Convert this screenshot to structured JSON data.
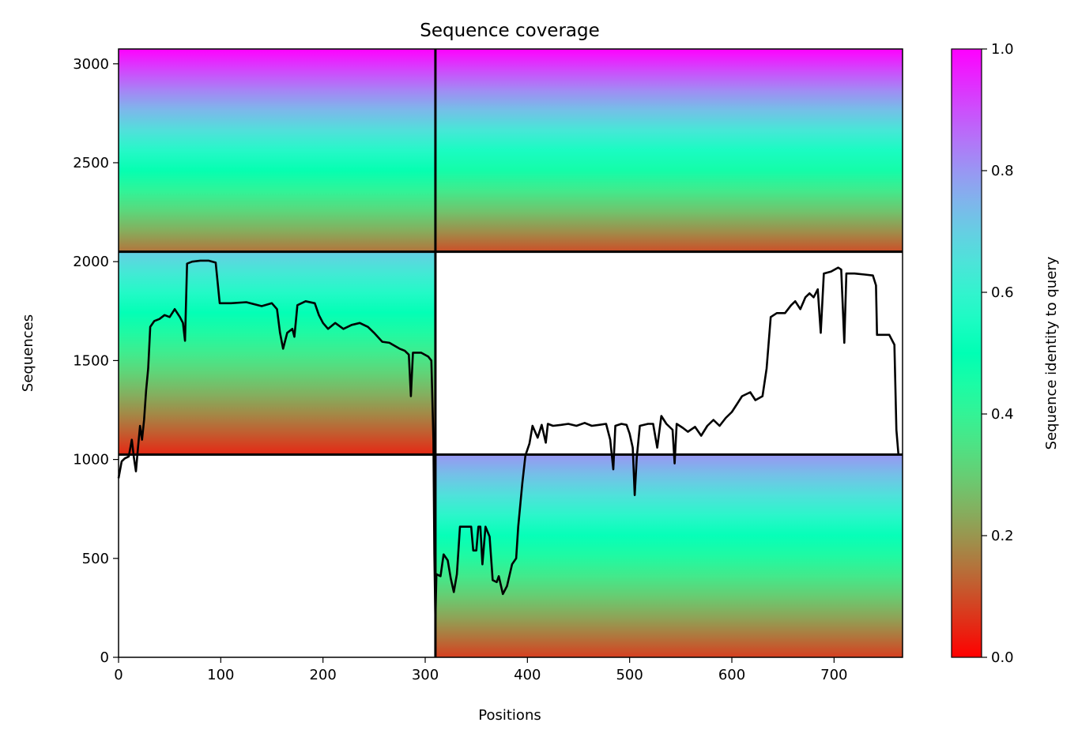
{
  "chart_data": {
    "type": "heatmap",
    "title": "Sequence coverage",
    "xlabel": "Positions",
    "ylabel": "Sequences",
    "xlim": [
      0,
      767
    ],
    "ylim": [
      0,
      3075
    ],
    "xticks": [
      0,
      100,
      200,
      300,
      400,
      500,
      600,
      700
    ],
    "xtick_labels": [
      "0",
      "100",
      "200",
      "300",
      "400",
      "500",
      "600",
      "700"
    ],
    "yticks": [
      0,
      500,
      1000,
      1500,
      2000,
      2500,
      3000
    ],
    "ytick_labels": [
      "0",
      "500",
      "1000",
      "1500",
      "2000",
      "2500",
      "3000"
    ],
    "colorbar": {
      "label": "Sequence identity to query",
      "range": [
        0,
        1
      ],
      "ticks": [
        0.0,
        0.2,
        0.4,
        0.6,
        0.8,
        1.0
      ],
      "tick_labels": [
        "0.0",
        "0.2",
        "0.4",
        "0.6",
        "0.8",
        "1.0"
      ],
      "colormap": "rainbow_r"
    },
    "chain_boundaries": {
      "positions": [
        310
      ],
      "sequences": [
        1025,
        2050
      ]
    },
    "blocks": [
      {
        "chain_x": [
          0,
          310
        ],
        "rows": [
          2050,
          3075
        ],
        "identity_top": 1.0,
        "identity_bottom": 0.15
      },
      {
        "chain_x": [
          310,
          767
        ],
        "rows": [
          2050,
          3075
        ],
        "identity_top": 1.0,
        "identity_bottom": 0.1
      },
      {
        "chain_x": [
          0,
          310
        ],
        "rows": [
          1025,
          2050
        ],
        "identity_top": 0.7,
        "identity_bottom": 0.05
      },
      {
        "chain_x": [
          310,
          767
        ],
        "rows": [
          0,
          1025
        ],
        "identity_top": 0.8,
        "identity_bottom": 0.08
      }
    ],
    "coverage_line": {
      "color": "#000000",
      "points": [
        [
          0,
          905
        ],
        [
          3,
          990
        ],
        [
          6,
          1005
        ],
        [
          10,
          1015
        ],
        [
          13,
          1100
        ],
        [
          15,
          1010
        ],
        [
          17,
          940
        ],
        [
          19,
          1060
        ],
        [
          21,
          1170
        ],
        [
          23,
          1100
        ],
        [
          25,
          1200
        ],
        [
          27,
          1350
        ],
        [
          29,
          1460
        ],
        [
          31,
          1670
        ],
        [
          35,
          1700
        ],
        [
          40,
          1710
        ],
        [
          45,
          1730
        ],
        [
          50,
          1720
        ],
        [
          55,
          1760
        ],
        [
          60,
          1720
        ],
        [
          63,
          1690
        ],
        [
          65,
          1600
        ],
        [
          67,
          1990
        ],
        [
          72,
          2000
        ],
        [
          80,
          2005
        ],
        [
          88,
          2005
        ],
        [
          95,
          1995
        ],
        [
          99,
          1790
        ],
        [
          110,
          1790
        ],
        [
          125,
          1795
        ],
        [
          140,
          1775
        ],
        [
          150,
          1790
        ],
        [
          155,
          1760
        ],
        [
          158,
          1640
        ],
        [
          161,
          1560
        ],
        [
          165,
          1640
        ],
        [
          170,
          1660
        ],
        [
          172,
          1620
        ],
        [
          175,
          1780
        ],
        [
          183,
          1800
        ],
        [
          192,
          1790
        ],
        [
          196,
          1730
        ],
        [
          200,
          1690
        ],
        [
          205,
          1660
        ],
        [
          212,
          1690
        ],
        [
          220,
          1660
        ],
        [
          228,
          1680
        ],
        [
          236,
          1690
        ],
        [
          244,
          1670
        ],
        [
          250,
          1640
        ],
        [
          258,
          1595
        ],
        [
          265,
          1590
        ],
        [
          275,
          1560
        ],
        [
          280,
          1550
        ],
        [
          284,
          1530
        ],
        [
          286,
          1320
        ],
        [
          288,
          1540
        ],
        [
          296,
          1540
        ],
        [
          303,
          1520
        ],
        [
          306,
          1500
        ],
        [
          308,
          1100
        ],
        [
          309,
          520
        ],
        [
          310,
          190
        ],
        [
          311,
          420
        ],
        [
          315,
          410
        ],
        [
          318,
          520
        ],
        [
          322,
          490
        ],
        [
          325,
          400
        ],
        [
          328,
          330
        ],
        [
          331,
          420
        ],
        [
          334,
          660
        ],
        [
          345,
          660
        ],
        [
          347,
          540
        ],
        [
          350,
          540
        ],
        [
          352,
          660
        ],
        [
          354,
          660
        ],
        [
          356,
          470
        ],
        [
          359,
          660
        ],
        [
          363,
          610
        ],
        [
          366,
          390
        ],
        [
          370,
          380
        ],
        [
          372,
          410
        ],
        [
          376,
          320
        ],
        [
          380,
          360
        ],
        [
          385,
          470
        ],
        [
          389,
          500
        ],
        [
          391,
          660
        ],
        [
          395,
          880
        ],
        [
          398,
          1020
        ],
        [
          402,
          1080
        ],
        [
          405,
          1170
        ],
        [
          410,
          1110
        ],
        [
          414,
          1175
        ],
        [
          418,
          1085
        ],
        [
          420,
          1180
        ],
        [
          425,
          1170
        ],
        [
          433,
          1175
        ],
        [
          440,
          1180
        ],
        [
          448,
          1170
        ],
        [
          456,
          1185
        ],
        [
          463,
          1170
        ],
        [
          470,
          1175
        ],
        [
          477,
          1180
        ],
        [
          481,
          1100
        ],
        [
          484,
          950
        ],
        [
          486,
          1170
        ],
        [
          492,
          1180
        ],
        [
          497,
          1175
        ],
        [
          500,
          1130
        ],
        [
          503,
          1060
        ],
        [
          505,
          820
        ],
        [
          507,
          1010
        ],
        [
          510,
          1170
        ],
        [
          518,
          1180
        ],
        [
          523,
          1180
        ],
        [
          527,
          1060
        ],
        [
          531,
          1220
        ],
        [
          536,
          1180
        ],
        [
          542,
          1150
        ],
        [
          544,
          980
        ],
        [
          546,
          1180
        ],
        [
          552,
          1160
        ],
        [
          557,
          1140
        ],
        [
          564,
          1165
        ],
        [
          570,
          1120
        ],
        [
          576,
          1170
        ],
        [
          582,
          1200
        ],
        [
          588,
          1170
        ],
        [
          594,
          1210
        ],
        [
          600,
          1240
        ],
        [
          605,
          1280
        ],
        [
          610,
          1320
        ],
        [
          618,
          1340
        ],
        [
          623,
          1300
        ],
        [
          630,
          1320
        ],
        [
          634,
          1460
        ],
        [
          638,
          1720
        ],
        [
          644,
          1740
        ],
        [
          652,
          1740
        ],
        [
          658,
          1780
        ],
        [
          662,
          1800
        ],
        [
          667,
          1760
        ],
        [
          672,
          1820
        ],
        [
          676,
          1840
        ],
        [
          680,
          1820
        ],
        [
          684,
          1860
        ],
        [
          687,
          1640
        ],
        [
          690,
          1940
        ],
        [
          697,
          1950
        ],
        [
          704,
          1970
        ],
        [
          707,
          1960
        ],
        [
          710,
          1590
        ],
        [
          712,
          1940
        ],
        [
          720,
          1940
        ],
        [
          730,
          1935
        ],
        [
          738,
          1930
        ],
        [
          741,
          1880
        ],
        [
          742,
          1630
        ],
        [
          748,
          1630
        ],
        [
          754,
          1630
        ],
        [
          759,
          1580
        ],
        [
          761,
          1150
        ],
        [
          763,
          1025
        ]
      ]
    }
  }
}
